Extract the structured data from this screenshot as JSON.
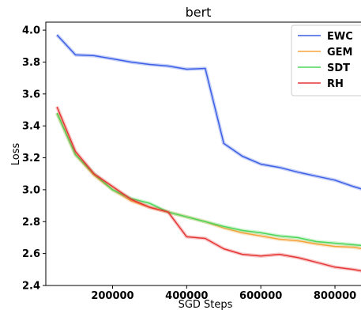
{
  "chart_data": {
    "type": "line",
    "title": "bert",
    "xlabel": "SGD Steps",
    "ylabel": "Loss",
    "xlim": [
      20000,
      915000
    ],
    "ylim": [
      2.4,
      4.05
    ],
    "xticks": [
      200000,
      400000,
      600000,
      800000
    ],
    "xtick_labels": [
      "200000",
      "400000",
      "600000",
      "800000"
    ],
    "yticks": [
      2.4,
      2.6,
      2.8,
      3.0,
      3.2,
      3.4,
      3.6,
      3.8,
      4.0
    ],
    "ytick_labels": [
      "2.4",
      "2.6",
      "2.8",
      "3.0",
      "3.2",
      "3.4",
      "3.6",
      "3.8",
      "4.0"
    ],
    "grid": false,
    "legend_position": "top-right",
    "series": [
      {
        "name": "EWC",
        "color": "#3b5fe6",
        "x": [
          50000,
          100000,
          150000,
          200000,
          250000,
          300000,
          350000,
          400000,
          450000,
          500000,
          550000,
          600000,
          650000,
          700000,
          750000,
          800000,
          850000,
          900000
        ],
        "y": [
          3.97,
          3.845,
          3.84,
          3.82,
          3.8,
          3.785,
          3.775,
          3.755,
          3.76,
          3.29,
          3.21,
          3.16,
          3.14,
          3.11,
          3.085,
          3.06,
          3.02,
          2.985
        ]
      },
      {
        "name": "GEM",
        "color": "#f5a33b",
        "x": [
          50000,
          100000,
          150000,
          200000,
          250000,
          300000,
          350000,
          400000,
          450000,
          500000,
          550000,
          600000,
          650000,
          700000,
          750000,
          800000,
          850000,
          900000
        ],
        "y": [
          3.48,
          3.22,
          3.09,
          3.0,
          2.93,
          2.89,
          2.86,
          2.83,
          2.8,
          2.76,
          2.73,
          2.71,
          2.69,
          2.68,
          2.66,
          2.645,
          2.64,
          2.62
        ]
      },
      {
        "name": "SDT",
        "color": "#4dd65a",
        "x": [
          50000,
          100000,
          150000,
          200000,
          250000,
          300000,
          350000,
          400000,
          450000,
          500000,
          550000,
          600000,
          650000,
          700000,
          750000,
          800000,
          850000,
          900000
        ],
        "y": [
          3.48,
          3.22,
          3.1,
          3.0,
          2.945,
          2.915,
          2.86,
          2.83,
          2.8,
          2.77,
          2.745,
          2.73,
          2.71,
          2.7,
          2.675,
          2.665,
          2.655,
          2.645
        ]
      },
      {
        "name": "RH",
        "color": "#e63535",
        "x": [
          50000,
          100000,
          150000,
          200000,
          250000,
          300000,
          350000,
          400000,
          450000,
          500000,
          550000,
          600000,
          650000,
          700000,
          750000,
          800000,
          850000,
          900000
        ],
        "y": [
          3.52,
          3.24,
          3.1,
          3.02,
          2.94,
          2.89,
          2.86,
          2.705,
          2.695,
          2.63,
          2.595,
          2.585,
          2.595,
          2.575,
          2.545,
          2.515,
          2.5,
          2.48
        ]
      }
    ]
  }
}
